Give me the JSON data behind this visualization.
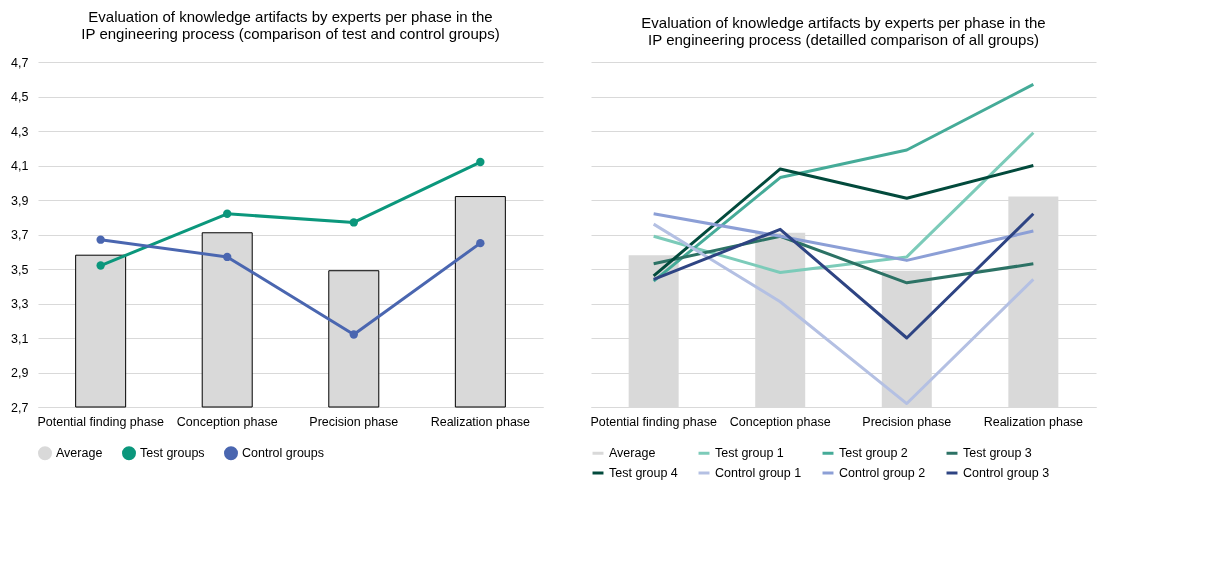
{
  "chart_data": [
    {
      "type": "bar",
      "title": "Evaluation of knowledge artifacts by experts per phase in the IP engineering process (comparison of test and control groups)",
      "categories": [
        "Potential finding phase",
        "Conception phase",
        "Precision phase",
        "Realization phase"
      ],
      "series": [
        {
          "name": "Average",
          "color": "#d9d9d9",
          "values": [
            3.58,
            3.71,
            3.49,
            3.92
          ]
        },
        {
          "name": "Test groups",
          "type": "line",
          "color": "#0b977c",
          "values": [
            3.52,
            3.82,
            3.77,
            4.12
          ]
        },
        {
          "name": "Control groups",
          "type": "line",
          "color": "#4a66b0",
          "values": [
            3.67,
            3.57,
            3.12,
            3.65
          ]
        }
      ],
      "ylim": [
        2.7,
        4.7
      ],
      "yticks": [
        {
          "value": 2.7,
          "label": "2,7"
        },
        {
          "value": 2.9,
          "label": "2,9"
        },
        {
          "value": 3.1,
          "label": "3,1"
        },
        {
          "value": 3.3,
          "label": "3,3"
        },
        {
          "value": 3.5,
          "label": "3,5"
        },
        {
          "value": 3.7,
          "label": "3,7"
        },
        {
          "value": 3.9,
          "label": "3,9"
        },
        {
          "value": 4.1,
          "label": "4,1"
        },
        {
          "value": 4.3,
          "label": "4,3"
        },
        {
          "value": 4.5,
          "label": "4,5"
        },
        {
          "value": 4.7,
          "label": "4,7"
        }
      ],
      "grid": "y",
      "legend": "bottom",
      "marker": "circle"
    },
    {
      "type": "bar",
      "title": "Evaluation of knowledge artifacts by experts per phase in the IP engineering process (detailled comparison of all groups)",
      "categories": [
        "Potential finding phase",
        "Conception phase",
        "Precision phase",
        "Realization phase"
      ],
      "series": [
        {
          "name": "Average",
          "color": "#d9d9d9",
          "values": [
            3.58,
            3.71,
            3.49,
            3.92
          ]
        },
        {
          "name": "Test group 1",
          "type": "line",
          "color": "#7ccbb9",
          "values": [
            3.69,
            3.48,
            3.57,
            4.29
          ]
        },
        {
          "name": "Test group 2",
          "type": "line",
          "color": "#45ab98",
          "values": [
            3.43,
            4.03,
            4.19,
            4.57
          ]
        },
        {
          "name": "Test group 3",
          "type": "line",
          "color": "#2c7265",
          "values": [
            3.53,
            3.69,
            3.42,
            3.53
          ]
        },
        {
          "name": "Test group 4",
          "type": "line",
          "color": "#024a3c",
          "values": [
            3.46,
            4.08,
            3.91,
            4.1
          ]
        },
        {
          "name": "Control group 1",
          "type": "line",
          "color": "#b4c0e3",
          "values": [
            3.76,
            3.31,
            2.72,
            3.44
          ]
        },
        {
          "name": "Control group 2",
          "type": "line",
          "color": "#8c9fd6",
          "values": [
            3.82,
            3.69,
            3.55,
            3.72
          ]
        },
        {
          "name": "Control group 3",
          "type": "line",
          "color": "#2e4483",
          "values": [
            3.44,
            3.73,
            3.1,
            3.82
          ]
        }
      ],
      "ylim": [
        2.7,
        4.7
      ],
      "yticks": [
        2.7,
        2.9,
        3.1,
        3.3,
        3.5,
        3.7,
        3.9,
        4.1,
        4.3,
        4.5,
        4.7
      ],
      "grid": "y",
      "legend": "bottom",
      "tick_labels": "x"
    }
  ]
}
